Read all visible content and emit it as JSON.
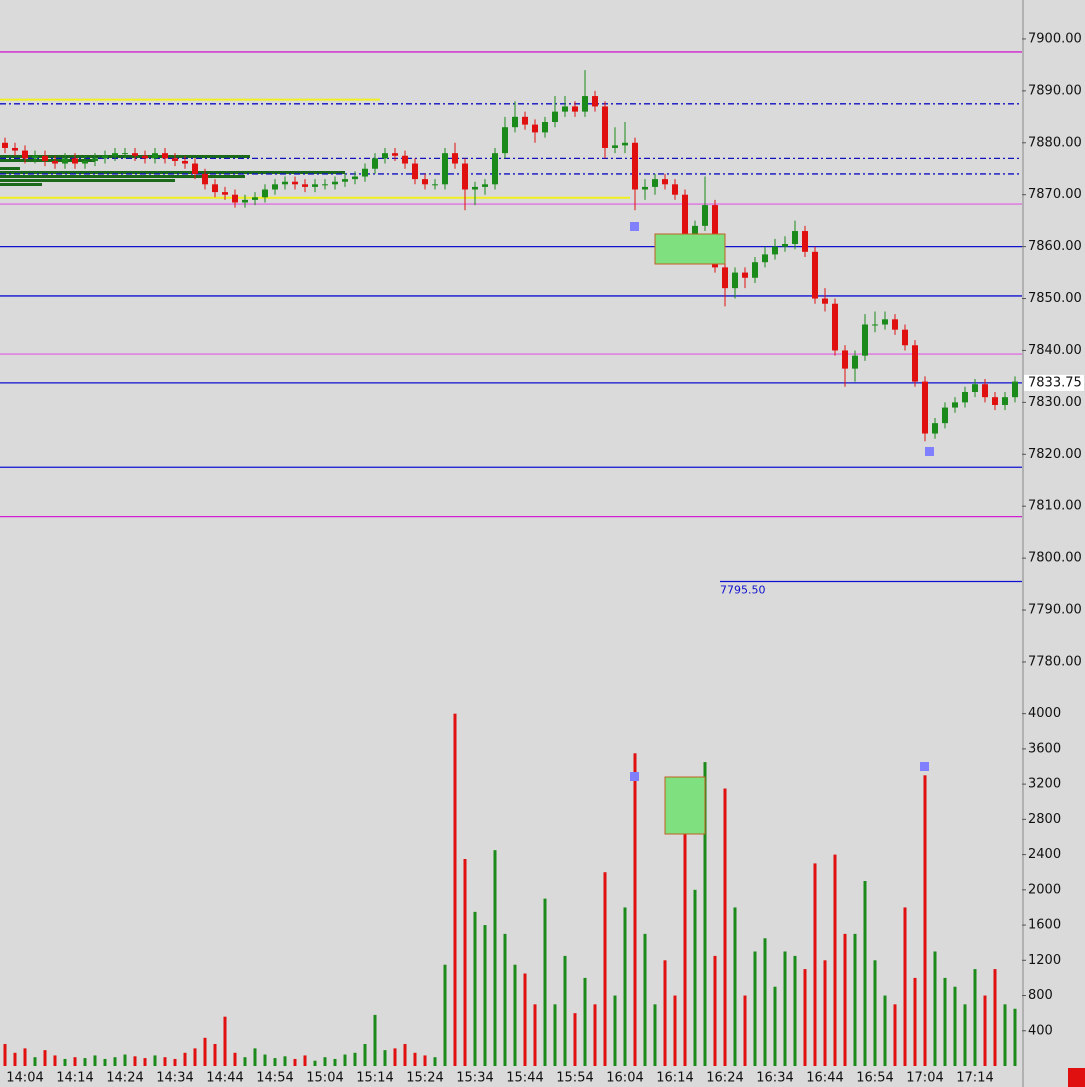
{
  "chart_data": {
    "type": "candlestick",
    "categories": [
      null,
      null,
      "14:04",
      null,
      null,
      null,
      null,
      "14:14",
      null,
      null,
      null,
      null,
      "14:24",
      null,
      null,
      null,
      null,
      "14:34",
      null,
      null,
      null,
      null,
      "14:44",
      null,
      null,
      null,
      null,
      "14:54",
      null,
      null,
      null,
      null,
      "15:04",
      null,
      null,
      null,
      null,
      "15:14",
      null,
      null,
      null,
      null,
      "15:24",
      null,
      null,
      null,
      null,
      "15:34",
      null,
      null,
      null,
      null,
      "15:44",
      null,
      null,
      null,
      null,
      "15:54",
      null,
      null,
      null,
      null,
      "16:04",
      null,
      null,
      null,
      null,
      "16:14",
      null,
      null,
      null,
      null,
      "16:24",
      null,
      null,
      null,
      null,
      "16:34",
      null,
      null,
      null,
      null,
      "16:44",
      null,
      null,
      null,
      null,
      "16:54",
      null,
      null,
      null,
      null,
      "17:04",
      null,
      null,
      null,
      null,
      "17:14",
      null,
      null,
      null,
      null
    ],
    "open": [
      7880,
      7879,
      7878.5,
      7877,
      7877.5,
      7876.5,
      7876,
      7877,
      7876,
      7876.5,
      7877,
      7877.5,
      7878,
      7878,
      7877.5,
      7877,
      7878,
      7877,
      7876.5,
      7876,
      7874,
      7872,
      7870.5,
      7870,
      7868.5,
      7869,
      7869.5,
      7871,
      7872,
      7872.5,
      7872,
      7871.5,
      7872,
      7872,
      7872.5,
      7873,
      7873.5,
      7875,
      7877,
      7878,
      7877.5,
      7876,
      7873,
      7872,
      7872,
      7878,
      7876,
      7871,
      7871.5,
      7872,
      7878,
      7883,
      7885,
      7883.5,
      7882,
      7884,
      7886,
      7887,
      7886,
      7889,
      7887,
      7879,
      7879.5,
      7880,
      7871,
      7871.5,
      7873,
      7872,
      7870,
      7859.5,
      7864,
      7868,
      7856,
      7852,
      7855,
      7854,
      7857,
      7858.5,
      7860,
      7860.5,
      7863,
      7859,
      7850,
      7849,
      7840,
      7836.5,
      7839,
      7845,
      7845,
      7846,
      7844,
      7841,
      7834,
      7824,
      7826,
      7829,
      7830,
      7832,
      7833.5,
      7831,
      7829.5,
      7831
    ],
    "high": [
      7881,
      7880,
      7879.5,
      7878.5,
      7878.5,
      7877.5,
      7878,
      7878,
      7877.5,
      7878,
      7878.5,
      7879,
      7879,
      7879,
      7878.5,
      7879,
      7879,
      7878,
      7877.5,
      7877,
      7875,
      7873,
      7871.5,
      7871,
      7870,
      7870.5,
      7872,
      7873,
      7873.5,
      7873.5,
      7873,
      7873,
      7873,
      7873.5,
      7874,
      7874.5,
      7876,
      7878,
      7879,
      7879,
      7878.5,
      7877,
      7874,
      7873,
      7879,
      7880,
      7877,
      7872.5,
      7873,
      7879,
      7885,
      7888,
      7886,
      7884.5,
      7885,
      7889,
      7889,
      7888,
      7894,
      7890,
      7888,
      7883,
      7884,
      7881,
      7873,
      7874,
      7874,
      7873,
      7871,
      7865,
      7873.5,
      7869,
      7857,
      7856,
      7856,
      7858,
      7860,
      7861.5,
      7862,
      7865,
      7864,
      7860,
      7852,
      7850,
      7841,
      7840,
      7847,
      7847.5,
      7847.5,
      7847,
      7845,
      7842,
      7835,
      7827,
      7830,
      7831,
      7833,
      7834.5,
      7834.5,
      7832,
      7832,
      7835
    ],
    "low": [
      7878,
      7877.5,
      7876,
      7876,
      7875.5,
      7875,
      7875,
      7875,
      7875,
      7875.5,
      7876,
      7876.5,
      7877,
      7876.5,
      7876,
      7876,
      7876,
      7875.5,
      7875,
      7873,
      7871,
      7869.5,
      7869,
      7867.5,
      7867.5,
      7868,
      7868.5,
      7870,
      7871,
      7871,
      7870.5,
      7870.5,
      7871,
      7871,
      7871.5,
      7872,
      7872.5,
      7874,
      7876,
      7876.5,
      7875,
      7872,
      7871,
      7871,
      7871,
      7875,
      7867,
      7868,
      7870,
      7871,
      7877,
      7882,
      7882.5,
      7880,
      7881,
      7883,
      7885,
      7885,
      7885,
      7886,
      7877,
      7878,
      7878,
      7867,
      7869,
      7870,
      7871,
      7869,
      7858,
      7858.5,
      7863,
      7855,
      7848.5,
      7850,
      7852,
      7853,
      7856,
      7857.5,
      7859,
      7859.5,
      7858,
      7849,
      7847.5,
      7839,
      7833,
      7834,
      7838,
      7843.5,
      7844,
      7843,
      7840,
      7833,
      7822.5,
      7823,
      7825,
      7828,
      7829,
      7831,
      7830,
      7828.5,
      7828.5,
      7830
    ],
    "close": [
      7879,
      7878.5,
      7877,
      7877.5,
      7876.5,
      7876,
      7877,
      7876,
      7876.5,
      7877,
      7877.5,
      7878,
      7878,
      7877.5,
      7877,
      7878,
      7877,
      7876.5,
      7876,
      7874,
      7872,
      7870.5,
      7870,
      7868.5,
      7869,
      7869.5,
      7871,
      7872,
      7872.5,
      7872,
      7871.5,
      7872,
      7872,
      7872.5,
      7873,
      7873.5,
      7875,
      7877,
      7878,
      7877.5,
      7876,
      7873,
      7872,
      7872,
      7878,
      7876,
      7871,
      7871.5,
      7872,
      7878,
      7883,
      7885,
      7883.5,
      7882,
      7884,
      7886,
      7887,
      7886,
      7889,
      7887,
      7879,
      7879.5,
      7880,
      7871,
      7871.5,
      7873,
      7872,
      7870,
      7859.5,
      7864,
      7868,
      7856,
      7852,
      7855,
      7854,
      7857,
      7858.5,
      7860,
      7860.5,
      7863,
      7859,
      7850,
      7849,
      7840,
      7836.5,
      7839,
      7845,
      7845,
      7846,
      7844,
      7841,
      7834,
      7824,
      7826,
      7829,
      7830,
      7832,
      7833.5,
      7831,
      7829.5,
      7831,
      7834
    ],
    "volume": [
      250,
      150,
      200,
      100,
      180,
      120,
      80,
      100,
      90,
      120,
      80,
      100,
      130,
      110,
      90,
      120,
      100,
      80,
      150,
      200,
      320,
      250,
      560,
      150,
      100,
      200,
      130,
      90,
      110,
      80,
      120,
      60,
      100,
      80,
      130,
      150,
      250,
      580,
      180,
      200,
      250,
      150,
      120,
      100,
      1150,
      4000,
      2350,
      1750,
      1600,
      2450,
      1500,
      1150,
      1050,
      700,
      1900,
      700,
      1250,
      600,
      1000,
      700,
      2200,
      800,
      1800,
      3550,
      1500,
      700,
      1200,
      800,
      3200,
      2000,
      3450,
      1250,
      3150,
      1800,
      800,
      1300,
      1450,
      900,
      1300,
      1250,
      1100,
      2300,
      1200,
      2400,
      1500,
      1500,
      2100,
      1200,
      800,
      700,
      1800,
      1000,
      3300,
      1300,
      1000,
      900,
      700,
      1100,
      800,
      1100,
      700,
      650
    ],
    "up_color": "#1a8a1a",
    "down_color": "#e01010",
    "ylim": [
      7774.6,
      7907.5
    ],
    "yticks": [
      {
        "value": 7900,
        "label": "7900.00"
      },
      {
        "value": 7890,
        "label": "7890.00"
      },
      {
        "value": 7880,
        "label": "7880.00"
      },
      {
        "value": 7870,
        "label": "7870.00"
      },
      {
        "value": 7860,
        "label": "7860.00"
      },
      {
        "value": 7850,
        "label": "7850.00"
      },
      {
        "value": 7840,
        "label": "7840.00"
      },
      {
        "value": 7830,
        "label": "7830.00"
      },
      {
        "value": 7820,
        "label": "7820.00"
      },
      {
        "value": 7810,
        "label": "7810.00"
      },
      {
        "value": 7800,
        "label": "7800.00"
      },
      {
        "value": 7790,
        "label": "7790.00"
      },
      {
        "value": 7780,
        "label": "7780.00"
      }
    ],
    "volume_ylim": [
      0,
      4155
    ],
    "volume_ticks": [
      400,
      800,
      1200,
      1600,
      2000,
      2400,
      2800,
      3200,
      3600,
      4000
    ],
    "levels": [
      {
        "value": 7897.5,
        "color": "#d020d0",
        "style": "solid"
      },
      {
        "value": 7888.3,
        "color": "#f0f020",
        "style": "solid",
        "end_category": "15:14"
      },
      {
        "value": 7887.5,
        "color": "#1010c0",
        "style": "dashdot"
      },
      {
        "value": 7877,
        "color": "#1010c0",
        "style": "dashdot"
      },
      {
        "value": 7874,
        "color": "#1010c0",
        "style": "dashdot"
      },
      {
        "value": 7869.4,
        "color": "#f0f020",
        "style": "solid",
        "end_category": "16:04"
      },
      {
        "value": 7868.2,
        "color": "#e070e0",
        "style": "solid"
      },
      {
        "value": 7860,
        "color": "#1010d0",
        "style": "solid"
      },
      {
        "value": 7850.5,
        "color": "#1010d0",
        "style": "solid"
      },
      {
        "value": 7839.3,
        "color": "#e070e0",
        "style": "solid"
      },
      {
        "value": 7833.75,
        "color": "#1010d0",
        "style": "solid",
        "label": "7833.75",
        "label_position": "axis"
      },
      {
        "value": 7817.5,
        "color": "#1010d0",
        "style": "solid"
      },
      {
        "value": 7808,
        "color": "#d020d0",
        "style": "solid"
      },
      {
        "value": 7795.5,
        "color": "#1010d0",
        "style": "solid",
        "label": "7795.50",
        "label_position": "line",
        "start_category": "16:24"
      }
    ]
  }
}
